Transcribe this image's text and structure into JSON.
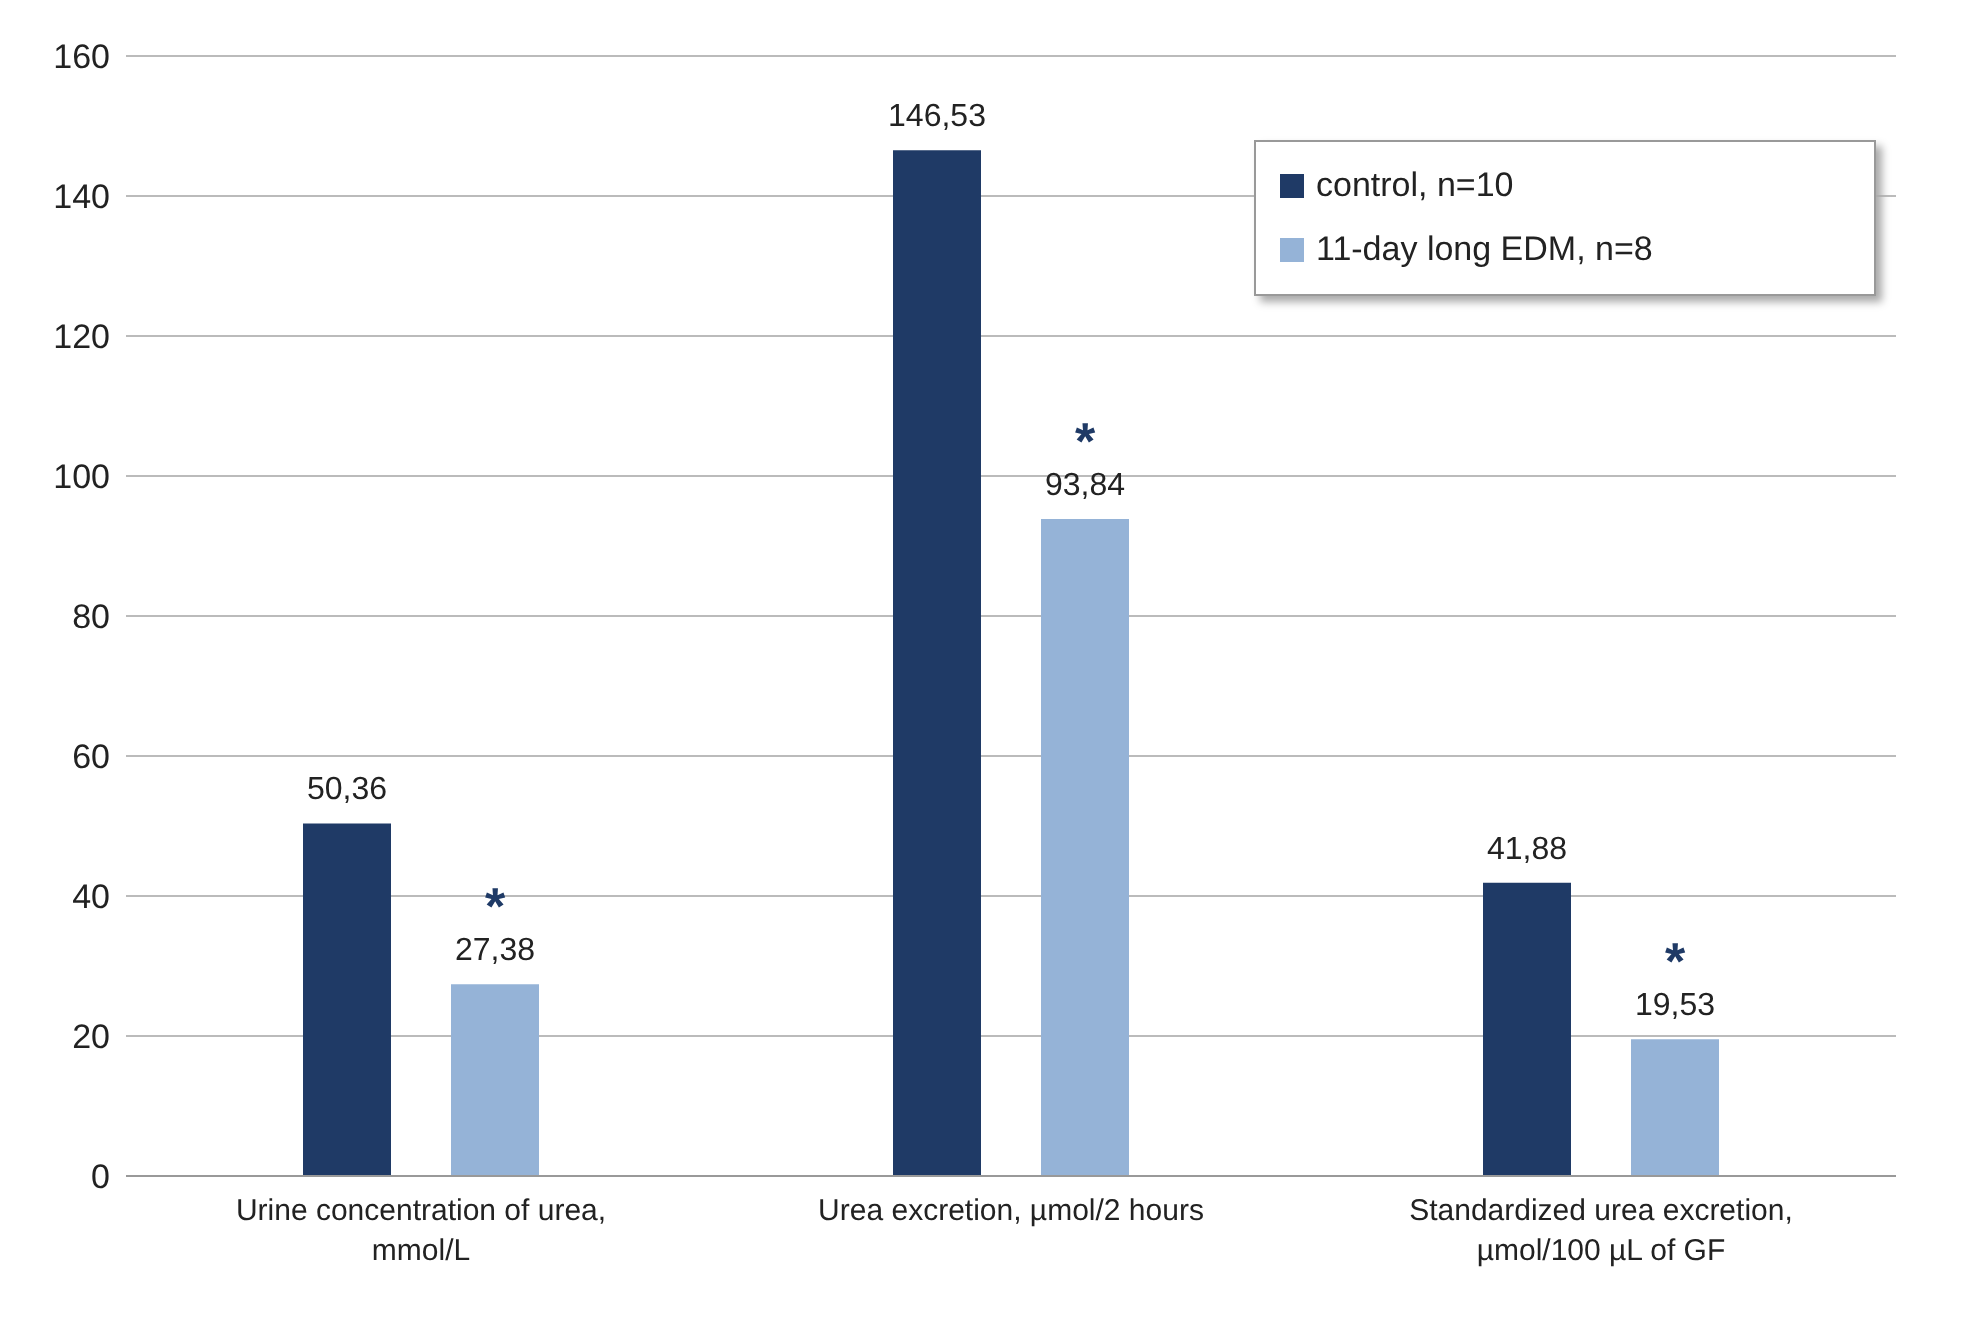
{
  "chart_data": {
    "type": "bar",
    "categories": [
      "Urine concentration of urea, mmol/L",
      "Urea excretion, µmol/2 hours",
      "Standardized urea excretion, µmol/100 µL of GF"
    ],
    "series": [
      {
        "name": "control, n=10",
        "color": "#1f3a66",
        "values": [
          50.36,
          146.53,
          41.88
        ],
        "value_labels": [
          "50,36",
          "146,53",
          "41,88"
        ]
      },
      {
        "name": "11-day long EDM, n=8",
        "color": "#95b3d7",
        "values": [
          27.38,
          93.84,
          19.53
        ],
        "value_labels": [
          "27,38",
          "93,84",
          "19,53"
        ]
      }
    ],
    "ylim": [
      0,
      160
    ],
    "yticks": [
      0,
      20,
      40,
      60,
      80,
      100,
      120,
      140,
      160
    ],
    "grid": "y",
    "legend": "top right",
    "annotations": [
      "*",
      "*",
      "*"
    ]
  }
}
